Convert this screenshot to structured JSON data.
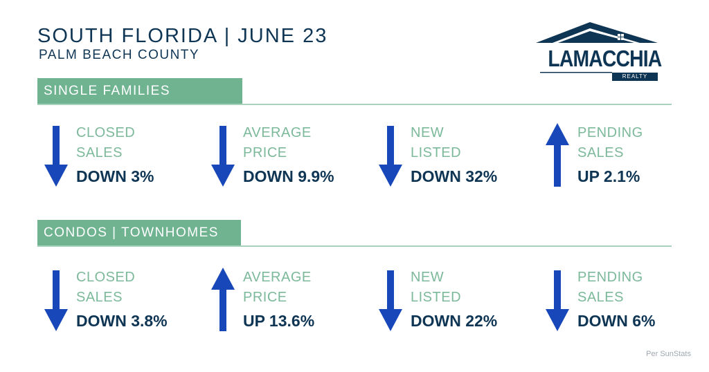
{
  "header": {
    "title": "SOUTH FLORIDA | JUNE 23",
    "subtitle": "PALM BEACH COUNTY"
  },
  "logo": {
    "name": "LAMACCHIA",
    "sub": "REALTY",
    "color": "#0f3554"
  },
  "colors": {
    "accent_green": "#6fb391",
    "navy": "#0f3554",
    "arrow_blue": "#1747b8",
    "label_green": "#7cb99a"
  },
  "sections": [
    {
      "title": "SINGLE FAMILIES",
      "metrics": [
        {
          "line1": "CLOSED",
          "line2": "SALES",
          "value": "DOWN 3%",
          "direction": "down"
        },
        {
          "line1": "AVERAGE",
          "line2": "PRICE",
          "value": "DOWN 9.9%",
          "direction": "down"
        },
        {
          "line1": "NEW",
          "line2": "LISTED",
          "value": "DOWN 32%",
          "direction": "down"
        },
        {
          "line1": "PENDING",
          "line2": "SALES",
          "value": "UP 2.1%",
          "direction": "up"
        }
      ]
    },
    {
      "title": "CONDOS | TOWNHOMES",
      "metrics": [
        {
          "line1": "CLOSED",
          "line2": "SALES",
          "value": "DOWN 3.8%",
          "direction": "down"
        },
        {
          "line1": "AVERAGE",
          "line2": "PRICE",
          "value": "UP 13.6%",
          "direction": "up"
        },
        {
          "line1": "NEW",
          "line2": "LISTED",
          "value": "DOWN 22%",
          "direction": "down"
        },
        {
          "line1": "PENDING",
          "line2": "SALES",
          "value": "DOWN 6%",
          "direction": "down"
        }
      ]
    }
  ],
  "footer": {
    "credit": "Per SunStats"
  }
}
